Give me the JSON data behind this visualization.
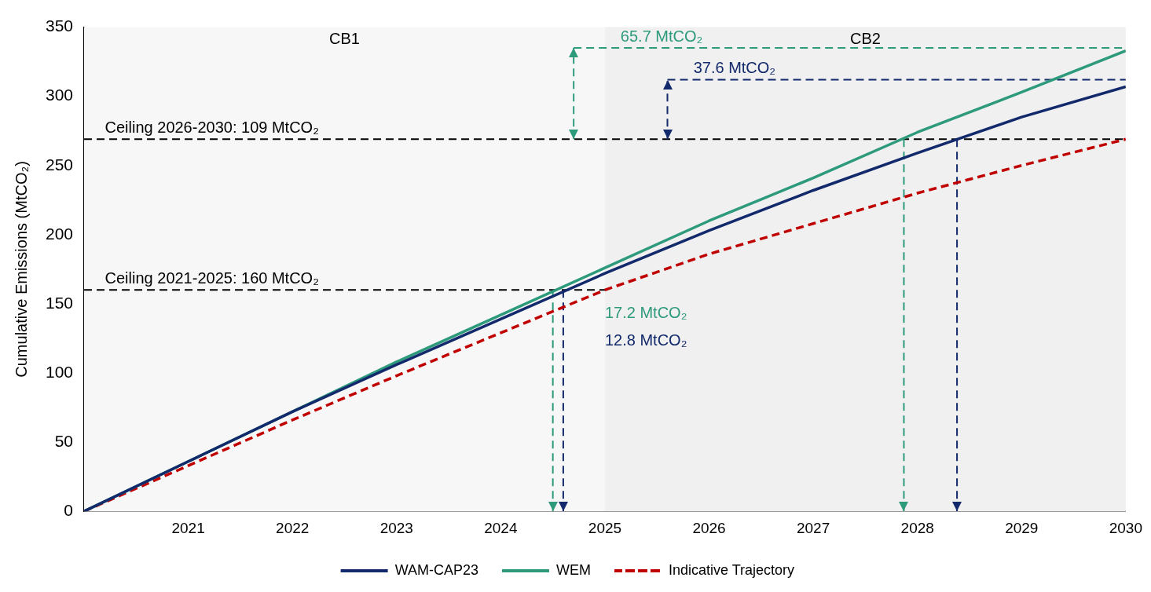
{
  "chart_data": {
    "type": "line",
    "ylabel": "Cumulative Emissions (MtCO₂)",
    "x": [
      2020,
      2021,
      2022,
      2023,
      2024,
      2025,
      2026,
      2027,
      2028,
      2029,
      2030
    ],
    "xlim": [
      2020,
      2030
    ],
    "xticks": [
      {
        "value": 2020,
        "label": null
      },
      2021,
      2022,
      2023,
      2024,
      2025,
      2026,
      2027,
      2028,
      2029,
      2030
    ],
    "ylim": [
      0,
      350
    ],
    "yticks": [
      0,
      50,
      100,
      150,
      200,
      250,
      300,
      350
    ],
    "grid": false,
    "legend": "bottom",
    "marker": "none",
    "series": [
      {
        "name": "WAM-CAP23",
        "color": "#12296b",
        "line_style": "solid",
        "values": [
          0,
          36,
          72,
          106,
          139,
          172,
          203,
          232,
          259,
          285,
          307
        ]
      },
      {
        "name": "WEM",
        "color": "#2e9a7c",
        "line_style": "solid",
        "values": [
          0,
          36,
          72,
          108,
          142,
          176,
          210,
          241,
          274,
          303,
          333
        ]
      },
      {
        "name": "Indicative Trajectory",
        "color": "#c00000",
        "line_style": "dashed",
        "values": [
          0,
          33,
          66,
          98,
          129,
          160,
          186,
          208,
          230,
          250,
          269
        ]
      },
      {
        "color": "#000000",
        "line_style": "dashed",
        "x": [
          2020,
          2025
        ],
        "values": [
          160,
          160
        ]
      },
      {
        "color": "#2e9a7c",
        "line_style": "dashed",
        "x": [
          2024.7,
          2030
        ],
        "values": [
          335,
          335
        ]
      },
      {
        "color": "#12296b",
        "line_style": "dashed",
        "x": [
          2025.6,
          2030
        ],
        "values": [
          312,
          312
        ]
      },
      {
        "color": "#2e9a7c",
        "line_style": "dashed",
        "x": [
          2024.7,
          2024.7
        ],
        "values": [
          269,
          335
        ]
      },
      {
        "color": "#12296b",
        "line_style": "dashed",
        "x": [
          2025.6,
          2025.6
        ],
        "values": [
          269,
          312
        ]
      },
      {
        "color": "#2e9a7c",
        "line_style": "dashed",
        "x": [
          2024.5,
          2024.5
        ],
        "values": [
          160,
          0
        ]
      },
      {
        "color": "#12296b",
        "line_style": "dashed",
        "x": [
          2024.6,
          2024.6
        ],
        "values": [
          160,
          0
        ]
      },
      {
        "color": "#2e9a7c",
        "line_style": "dashed",
        "x": [
          2027.87,
          2027.87
        ],
        "values": [
          269,
          0
        ]
      },
      {
        "color": "#12296b",
        "line_style": "dashed",
        "x": [
          2028.38,
          2028.38
        ],
        "values": [
          269,
          0
        ]
      }
    ],
    "ref_lines": [
      {
        "axis": "y",
        "value": 269,
        "color": "#000000",
        "line_style": "dashed"
      }
    ],
    "bands": [
      {
        "axis": "x",
        "from": 2020,
        "to": 2025,
        "label": "CB1",
        "color": "#f7f7f7"
      },
      {
        "axis": "x",
        "from": 2025,
        "to": 2030,
        "label": "CB2",
        "color": "#f0f0f0"
      }
    ],
    "annotations": [
      {
        "text": "Ceiling 2026-2030: 109 MtCO₂",
        "x": 2020.2,
        "y": 269
      },
      {
        "text": "Ceiling 2021-2025: 160 MtCO₂",
        "x": 2020.2,
        "y": 160
      },
      {
        "text": "65.7 MtCO₂",
        "x": 2025.15,
        "y": 335
      },
      {
        "text": "37.6 MtCO₂",
        "x": 2025.85,
        "y": 312
      },
      {
        "text": "17.2 MtCO₂",
        "x": 2025,
        "y": 135
      },
      {
        "text": "12.8 MtCO₂",
        "x": 2025,
        "y": 115
      }
    ]
  }
}
